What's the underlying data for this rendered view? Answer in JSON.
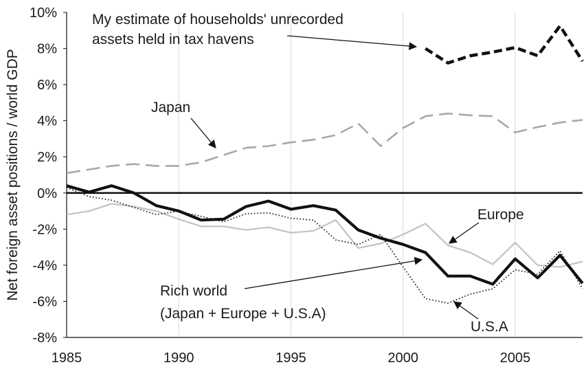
{
  "chart_data": {
    "type": "line",
    "title": "",
    "xlabel": "",
    "ylabel": "Net foreign asset positions / world GDP",
    "xlim": [
      1985,
      2008
    ],
    "ylim": [
      -8,
      10
    ],
    "x_ticks": [
      1985,
      1990,
      1995,
      2000,
      2005
    ],
    "y_ticks": [
      10,
      8,
      6,
      4,
      2,
      0,
      -2,
      -4,
      -6,
      -8
    ],
    "y_tick_labels": [
      "10%",
      "8%",
      "6%",
      "4%",
      "2%",
      "0%",
      "-2%",
      "-4%",
      "-6%",
      "-8%"
    ],
    "grid": "vertical",
    "legend": "none",
    "zero_line": true,
    "series": [
      {
        "name": "My estimate of households' unrecorded assets held in tax havens",
        "style": "dashed-thick",
        "color": "#111111",
        "x": [
          2001,
          2002,
          2003,
          2004,
          2005,
          2006,
          2007,
          2008
        ],
        "y": [
          8.0,
          7.2,
          7.6,
          7.8,
          8.05,
          7.6,
          9.25,
          7.3
        ]
      },
      {
        "name": "Japan",
        "style": "dashed-light",
        "color": "#a8a8a8",
        "x": [
          1985,
          1986,
          1987,
          1988,
          1989,
          1990,
          1991,
          1992,
          1993,
          1994,
          1995,
          1996,
          1997,
          1998,
          1999,
          2000,
          2001,
          2002,
          2003,
          2004,
          2005,
          2006,
          2007,
          2008
        ],
        "y": [
          1.1,
          1.3,
          1.5,
          1.6,
          1.5,
          1.5,
          1.7,
          2.1,
          2.5,
          2.6,
          2.8,
          2.95,
          3.2,
          3.85,
          2.6,
          3.6,
          4.25,
          4.4,
          4.3,
          4.25,
          3.35,
          3.65,
          3.9,
          4.05
        ]
      },
      {
        "name": "Rich world (Japan + Europe + U.S.A)",
        "style": "solid-thick",
        "color": "#111111",
        "x": [
          1985,
          1986,
          1987,
          1988,
          1989,
          1990,
          1991,
          1992,
          1993,
          1994,
          1995,
          1996,
          1997,
          1998,
          1999,
          2000,
          2001,
          2002,
          2003,
          2004,
          2005,
          2006,
          2007,
          2008
        ],
        "y": [
          0.4,
          0.05,
          0.4,
          0.0,
          -0.7,
          -1.0,
          -1.5,
          -1.45,
          -0.75,
          -0.45,
          -0.9,
          -0.7,
          -0.95,
          -2.05,
          -2.5,
          -2.85,
          -3.3,
          -4.6,
          -4.6,
          -5.05,
          -3.65,
          -4.7,
          -3.45,
          -5.0
        ]
      },
      {
        "name": "Europe",
        "style": "solid-light",
        "color": "#c4c4c4",
        "x": [
          1985,
          1986,
          1987,
          1988,
          1989,
          1990,
          1991,
          1992,
          1993,
          1994,
          1995,
          1996,
          1997,
          1998,
          1999,
          2000,
          2001,
          2002,
          2003,
          2004,
          2005,
          2006,
          2007,
          2008
        ],
        "y": [
          -1.2,
          -1.0,
          -0.6,
          -0.75,
          -1.0,
          -1.45,
          -1.85,
          -1.85,
          -2.05,
          -1.9,
          -2.2,
          -2.1,
          -1.5,
          -3.05,
          -2.8,
          -2.3,
          -1.7,
          -2.9,
          -3.3,
          -3.95,
          -2.75,
          -4.0,
          -4.1,
          -3.8
        ]
      },
      {
        "name": "U.S.A",
        "style": "dotted",
        "color": "#111111",
        "x": [
          1985,
          1986,
          1987,
          1988,
          1989,
          1990,
          1991,
          1992,
          1993,
          1994,
          1995,
          1996,
          1997,
          1998,
          1999,
          2000,
          2001,
          2002,
          2003,
          2004,
          2005,
          2006,
          2007,
          2008
        ],
        "y": [
          0.3,
          -0.2,
          -0.4,
          -0.8,
          -1.2,
          -1.0,
          -1.3,
          -1.6,
          -1.15,
          -1.1,
          -1.4,
          -1.5,
          -2.6,
          -2.85,
          -2.3,
          -4.1,
          -5.85,
          -6.1,
          -5.6,
          -5.3,
          -4.25,
          -4.5,
          -3.2,
          -5.3
        ]
      }
    ],
    "annotations": {
      "havens": [
        "My estimate of households' unrecorded",
        "assets held in tax havens"
      ],
      "japan": [
        "Japan"
      ],
      "europe": [
        "Europe"
      ],
      "rich": [
        "Rich world",
        "(Japan + Europe + U.S.A)"
      ],
      "usa": [
        "U.S.A"
      ]
    }
  }
}
